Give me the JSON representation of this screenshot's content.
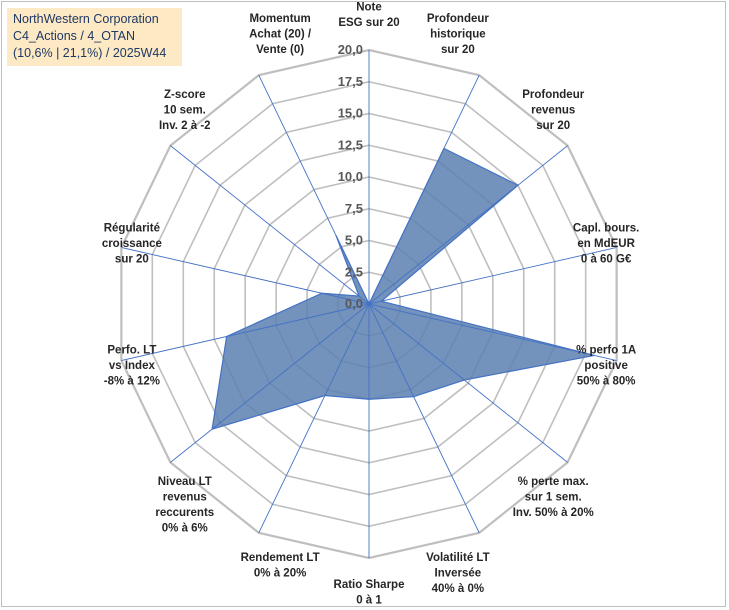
{
  "header": {
    "line1": "NorthWestern Corporation",
    "line2": "C4_Actions / 4_OTAN",
    "line3": "(10,6% | 21,1%) / 2025W44"
  },
  "chart_data": {
    "type": "radar",
    "rmin": 0,
    "rmax": 20,
    "ticks": [
      "0,0",
      "2,5",
      "5,0",
      "7,5",
      "10,0",
      "12,5",
      "15,0",
      "17,5",
      "20,0"
    ],
    "axes": [
      {
        "label": [
          "Note",
          "ESG sur 20"
        ],
        "value": 0
      },
      {
        "label": [
          "Profondeur",
          "historique",
          "sur 20"
        ],
        "value": 13.6
      },
      {
        "label": [
          "Profondeur",
          "revenus",
          "sur 20"
        ],
        "value": 15.0
      },
      {
        "label": [
          "Capl. bours.",
          "en MdEUR",
          "0 à 60 G€"
        ],
        "value": 1.0
      },
      {
        "label": [
          "% perfo 1A",
          "positive",
          "50% à 80%"
        ],
        "value": 18.2
      },
      {
        "label": [
          "% perte max.",
          "sur 1 sem.",
          "Inv. 50% à 20%"
        ],
        "value": 9.6
      },
      {
        "label": [
          "Volatilité LT",
          "Inversée",
          "40% à 0%"
        ],
        "value": 8.1
      },
      {
        "label": [
          "Ratio Sharpe",
          "0 à 1"
        ],
        "value": 7.5
      },
      {
        "label": [
          "Rendement LT",
          "0% à 20%"
        ],
        "value": 8.0
      },
      {
        "label": [
          "Niveau LT",
          "revenus",
          "reccurents",
          "0% à 6%"
        ],
        "value": 15.8
      },
      {
        "label": [
          "Perfo. LT",
          "vs Index",
          "-8% à 12%"
        ],
        "value": 11.5
      },
      {
        "label": [
          "Régularité",
          "croissance",
          "sur 20"
        ],
        "value": 3.8
      },
      {
        "label": [
          "Z-score",
          "10 sem.",
          "Inv. 2 à -2"
        ],
        "value": 1.0
      },
      {
        "label": [
          "Momentum",
          "Achat (20) /",
          "Vente (0)"
        ],
        "value": 6.0
      }
    ],
    "colors": {
      "fill": "#5b7fb0",
      "stroke": "#4472c4",
      "grid": "#bfbfbf",
      "axis": "#4472c4"
    }
  }
}
